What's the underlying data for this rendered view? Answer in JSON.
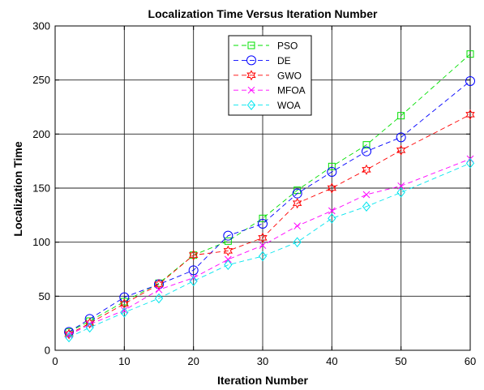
{
  "chart_data": {
    "type": "line",
    "title": "Localization Time Versus Iteration Number",
    "xlabel": "Iteration Number",
    "ylabel": "Localization Time",
    "xlim": [
      0,
      60
    ],
    "ylim": [
      0,
      300
    ],
    "xticks": [
      0,
      10,
      20,
      30,
      40,
      50,
      60
    ],
    "yticks": [
      0,
      50,
      100,
      150,
      200,
      250,
      300
    ],
    "grid": true,
    "legend_position": "top-center",
    "x": [
      2,
      5,
      10,
      15,
      20,
      25,
      30,
      35,
      40,
      45,
      50,
      60
    ],
    "series": [
      {
        "name": "PSO",
        "color": "#00e000",
        "marker": "square",
        "values": [
          17,
          27,
          45,
          62,
          88,
          101,
          122,
          148,
          170,
          190,
          217,
          274
        ]
      },
      {
        "name": "DE",
        "color": "#0000ff",
        "marker": "circle",
        "values": [
          17,
          29,
          49,
          61,
          74,
          106,
          117,
          145,
          165,
          184,
          197,
          249
        ]
      },
      {
        "name": "GWO",
        "color": "#ff0000",
        "marker": "hexagram",
        "values": [
          15,
          25,
          43,
          61,
          88,
          92,
          104,
          136,
          150,
          167,
          185,
          218
        ]
      },
      {
        "name": "MFOA",
        "color": "#ff00ff",
        "marker": "x",
        "values": [
          14,
          24,
          37,
          56,
          67,
          84,
          97,
          115,
          129,
          144,
          152,
          177
        ]
      },
      {
        "name": "WOA",
        "color": "#00e5ee",
        "marker": "diamond",
        "values": [
          12,
          21,
          35,
          48,
          64,
          79,
          87,
          100,
          122,
          133,
          146,
          173
        ]
      }
    ]
  }
}
